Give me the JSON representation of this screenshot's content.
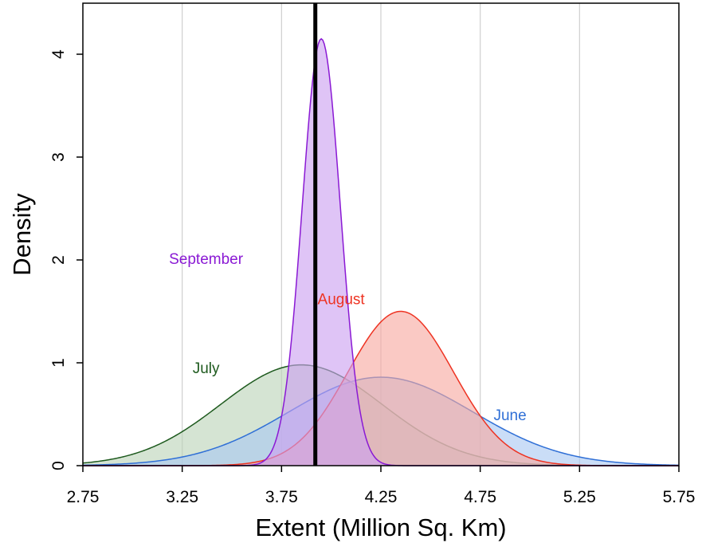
{
  "chart_data": {
    "type": "area",
    "title": "",
    "xlabel": "Extent (Million Sq. Km)",
    "ylabel": "Density",
    "xlim": [
      2.75,
      5.75
    ],
    "ylim": [
      0,
      4.4
    ],
    "x_ticks": [
      "2.75",
      "3.25",
      "3.75",
      "4.25",
      "4.75",
      "5.25",
      "5.75"
    ],
    "x_tick_values": [
      2.75,
      3.25,
      3.75,
      4.25,
      4.75,
      5.25,
      5.75
    ],
    "y_ticks": [
      "0",
      "1",
      "2",
      "3",
      "4"
    ],
    "y_tick_values": [
      0,
      1,
      2,
      3,
      4
    ],
    "grid": "vertical",
    "reference_line": {
      "x": 3.92,
      "color": "#000000"
    },
    "series": [
      {
        "name": "July",
        "color": "#1e5a1e",
        "fill": "#bcd3b8",
        "distribution": "normal",
        "mean": 3.85,
        "peak_density": 0.98,
        "label_position": {
          "x": 3.37,
          "y": 0.9
        }
      },
      {
        "name": "June",
        "color": "#2f6fd6",
        "fill": "#aac8f2",
        "distribution": "normal",
        "mean": 4.25,
        "peak_density": 0.86,
        "label_position": {
          "x": 4.9,
          "y": 0.44
        }
      },
      {
        "name": "August",
        "color": "#ee3322",
        "fill": "#f7a8a0",
        "distribution": "normal",
        "mean": 4.35,
        "peak_density": 1.5,
        "label_position": {
          "x": 4.05,
          "y": 1.57
        }
      },
      {
        "name": "September",
        "color": "#8a19d4",
        "fill": "#cc9ff0",
        "distribution": "normal",
        "mean": 3.95,
        "peak_density": 4.15,
        "label_position": {
          "x": 3.37,
          "y": 1.96
        }
      }
    ]
  }
}
